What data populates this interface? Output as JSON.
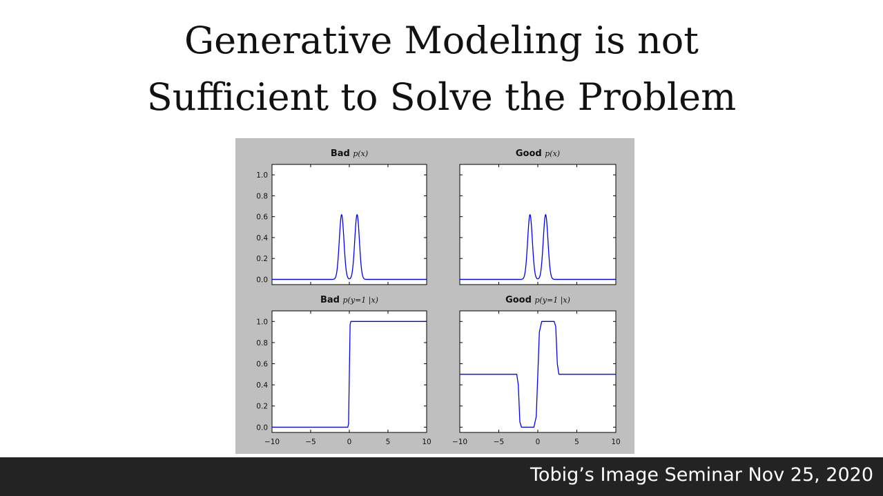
{
  "slide": {
    "title_line1": "Generative Modeling is not",
    "title_line2": "Sufficient to Solve the Problem",
    "footer": "Tobig’s Image Seminar Nov 25, 2020"
  },
  "chart_data": [
    {
      "type": "line",
      "title_prefix": "Bad",
      "title_math": "p(x)",
      "xlim": [
        -10,
        10
      ],
      "ylim": [
        -0.05,
        1.1
      ],
      "xticks": [
        "−10",
        "−5",
        "0",
        "5",
        "10"
      ],
      "yticks": [
        "1.0",
        "0.8",
        "0.6",
        "0.4",
        "0.2",
        "0.0"
      ],
      "show_xticklabels": false,
      "show_yticklabels": true,
      "curve": "bimodal",
      "series": [
        {
          "x": [
            -10,
            -2,
            -1.7,
            -1.4,
            -1.2,
            -1,
            -0.8,
            -0.6,
            -0.3,
            0,
            0.3,
            0.6,
            0.8,
            1,
            1.2,
            1.4,
            1.7,
            2,
            10
          ],
          "y": [
            0,
            0,
            0.02,
            0.13,
            0.39,
            0.62,
            0.39,
            0.13,
            0.01,
            0,
            0.01,
            0.13,
            0.39,
            0.62,
            0.39,
            0.13,
            0.02,
            0,
            0
          ],
          "color": "#0000ee"
        }
      ]
    },
    {
      "type": "line",
      "title_prefix": "Good",
      "title_math": "p(x)",
      "xlim": [
        -10,
        10
      ],
      "ylim": [
        -0.05,
        1.1
      ],
      "xticks": [
        "−10",
        "−5",
        "0",
        "5",
        "10"
      ],
      "yticks": [],
      "show_xticklabels": false,
      "show_yticklabels": false,
      "curve": "bimodal",
      "series": [
        {
          "x": [
            -10,
            -2,
            -1.7,
            -1.4,
            -1.2,
            -1,
            -0.8,
            -0.6,
            -0.3,
            0,
            0.3,
            0.6,
            0.8,
            1,
            1.2,
            1.4,
            1.7,
            2,
            10
          ],
          "y": [
            0,
            0,
            0.02,
            0.13,
            0.39,
            0.62,
            0.39,
            0.13,
            0.01,
            0,
            0.01,
            0.13,
            0.39,
            0.62,
            0.39,
            0.13,
            0.02,
            0,
            0
          ],
          "color": "#0000ee"
        }
      ]
    },
    {
      "type": "line",
      "title_prefix": "Bad",
      "title_math": "p(y=1 |x)",
      "xlim": [
        -10,
        10
      ],
      "ylim": [
        -0.05,
        1.1
      ],
      "xticks": [
        "−10",
        "−5",
        "0",
        "5",
        "10"
      ],
      "yticks": [
        "1.0",
        "0.8",
        "0.6",
        "0.4",
        "0.2",
        "0.0"
      ],
      "show_xticklabels": true,
      "show_yticklabels": true,
      "series": [
        {
          "x": [
            -10,
            -0.2,
            -0.1,
            0,
            0.1,
            0.2,
            10
          ],
          "y": [
            0,
            0,
            0.03,
            0.5,
            0.97,
            1,
            1
          ],
          "color": "#0000ee"
        }
      ]
    },
    {
      "type": "line",
      "title_prefix": "Good",
      "title_math": "p(y=1 |x)",
      "xlim": [
        -10,
        10
      ],
      "ylim": [
        -0.05,
        1.1
      ],
      "xticks": [
        "−10",
        "−5",
        "0",
        "5",
        "10"
      ],
      "yticks": [],
      "show_xticklabels": true,
      "show_yticklabels": false,
      "series": [
        {
          "x": [
            -10,
            -2.7,
            -2.5,
            -2.3,
            -2.1,
            -1.5,
            -1.0,
            -0.5,
            -0.2,
            0,
            0.2,
            0.5,
            1,
            1.5,
            2.1,
            2.3,
            2.5,
            2.7,
            10
          ],
          "y": [
            0.5,
            0.5,
            0.4,
            0.05,
            0,
            0,
            0,
            0,
            0.1,
            0.5,
            0.9,
            1,
            1,
            1,
            1,
            0.95,
            0.6,
            0.5,
            0.5
          ],
          "color": "#0000ee"
        }
      ]
    }
  ]
}
